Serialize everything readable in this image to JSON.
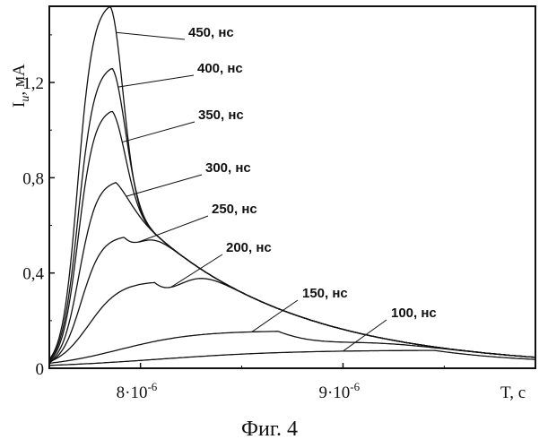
{
  "caption": "Фиг. 4",
  "chart_data": {
    "type": "line",
    "title": "",
    "xlabel": "T, c",
    "ylabel_main": "I",
    "ylabel_sub": "и",
    "ylabel_unit": ", мА",
    "xlim": [
      7.55e-06,
      9.95e-06
    ],
    "ylim": [
      0,
      1.52
    ],
    "x_ticks": [
      {
        "value": 8e-06,
        "mantissa": "8·10",
        "exp": "-6"
      },
      {
        "value": 9e-06,
        "mantissa": "9·10",
        "exp": "-6"
      }
    ],
    "y_ticks": [
      {
        "value": 0,
        "label": "0"
      },
      {
        "value": 0.4,
        "label": "0,4"
      },
      {
        "value": 0.8,
        "label": "0,8"
      },
      {
        "value": 1.2,
        "label": "1,2"
      }
    ],
    "tail_amplitude": 0.62,
    "tail_tau": 7.5e-07,
    "series": [
      {
        "name": "450, нс",
        "peak_x": 7.85e-06,
        "peak_y": 1.52
      },
      {
        "name": "400, нс",
        "peak_x": 7.86e-06,
        "peak_y": 1.26
      },
      {
        "name": "350, нс",
        "peak_x": 7.86e-06,
        "peak_y": 1.08
      },
      {
        "name": "300, нс",
        "peak_x": 7.88e-06,
        "peak_y": 0.78
      },
      {
        "name": "250, нс",
        "peak_x": 7.92e-06,
        "peak_y": 0.55
      },
      {
        "name": "200, нс",
        "peak_x": 8.07e-06,
        "peak_y": 0.36
      },
      {
        "name": "150, нс",
        "peak_x": 8.68e-06,
        "peak_y": 0.155
      },
      {
        "name": "100, нс",
        "peak_x": 9.45e-06,
        "peak_y": 0.075
      }
    ]
  }
}
